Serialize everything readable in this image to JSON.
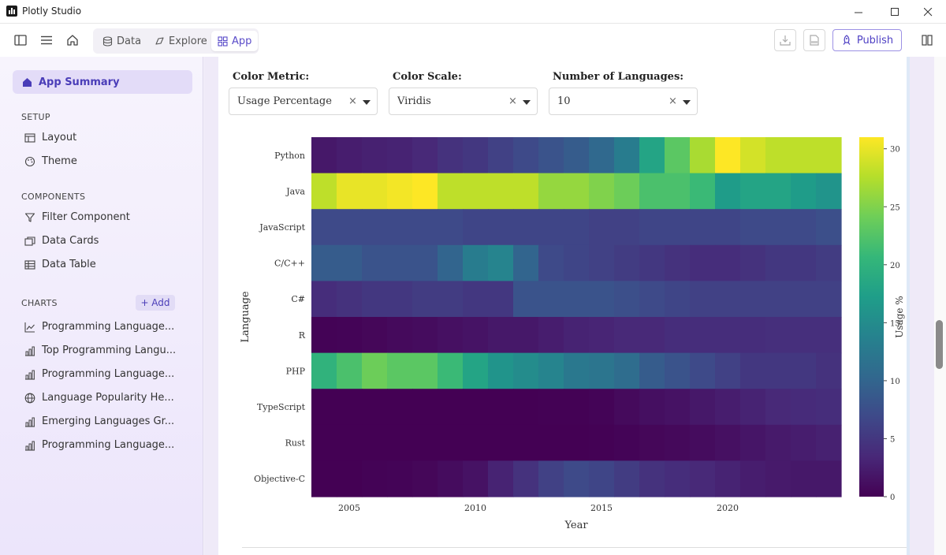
{
  "window": {
    "title": "Plotly Studio"
  },
  "toolbar": {
    "tabs": [
      {
        "label": "Data"
      },
      {
        "label": "Explore"
      },
      {
        "label": "App"
      }
    ],
    "active_tab": "App",
    "publish_label": "Publish",
    "accent": "#5a4cc9"
  },
  "sidebar": {
    "app_summary": "App Summary",
    "setup": {
      "heading": "SETUP",
      "items": [
        {
          "label": "Layout",
          "icon": "layout-icon"
        },
        {
          "label": "Theme",
          "icon": "palette-icon"
        }
      ]
    },
    "components": {
      "heading": "COMPONENTS",
      "items": [
        {
          "label": "Filter Component",
          "icon": "filter-icon"
        },
        {
          "label": "Data Cards",
          "icon": "cards-icon"
        },
        {
          "label": "Data Table",
          "icon": "table-icon"
        }
      ]
    },
    "charts": {
      "heading": "CHARTS",
      "add_label": "+ Add",
      "items": [
        {
          "label": "Programming Language...",
          "icon": "line-chart-icon"
        },
        {
          "label": "Top Programming Langu...",
          "icon": "bar-chart-icon"
        },
        {
          "label": "Programming Language...",
          "icon": "bar-chart-icon"
        },
        {
          "label": "Language Popularity He...",
          "icon": "globe-icon"
        },
        {
          "label": "Emerging Languages Gr...",
          "icon": "bar-chart-icon"
        },
        {
          "label": "Programming Language...",
          "icon": "bar-chart-icon"
        }
      ]
    }
  },
  "controls": {
    "color_metric": {
      "label": "Color Metric:",
      "value": "Usage Percentage"
    },
    "color_scale": {
      "label": "Color Scale:",
      "value": "Viridis"
    },
    "num_languages": {
      "label": "Number of Languages:",
      "value": "10"
    }
  },
  "chart_data": {
    "type": "heatmap",
    "xlabel": "Year",
    "ylabel": "Language",
    "colorbar_title": "Usage %",
    "colorscale": "Viridis",
    "zlim": [
      0,
      31
    ],
    "colorbar_ticks": [
      0,
      5,
      10,
      15,
      20,
      25,
      30
    ],
    "x": [
      2004,
      2005,
      2006,
      2007,
      2008,
      2009,
      2010,
      2011,
      2012,
      2013,
      2014,
      2015,
      2016,
      2017,
      2018,
      2019,
      2020,
      2021,
      2022,
      2023,
      2024
    ],
    "x_ticks": [
      2005,
      2010,
      2015,
      2020
    ],
    "y": [
      "Python",
      "Java",
      "JavaScript",
      "C/C++",
      "C#",
      "R",
      "PHP",
      "TypeScript",
      "Rust",
      "Objective-C"
    ],
    "z": [
      [
        2,
        2.5,
        2.8,
        3,
        3.5,
        4.5,
        5,
        6,
        7,
        8,
        9,
        10.5,
        13,
        18,
        23,
        27,
        31,
        29,
        28,
        28,
        28
      ],
      [
        28,
        30,
        30,
        30.5,
        31,
        28,
        28,
        28,
        28,
        26,
        26,
        25,
        24,
        22,
        22,
        21,
        17,
        18,
        18,
        17,
        16
      ],
      [
        7,
        7,
        7,
        7,
        7,
        7,
        6.5,
        6.5,
        6.5,
        6.5,
        6.5,
        6,
        6,
        6.5,
        6.5,
        6.5,
        6.5,
        7,
        7,
        7,
        7.5
      ],
      [
        9,
        9,
        8,
        8,
        8,
        10,
        13,
        14,
        10,
        7,
        6.5,
        6,
        5.5,
        5,
        4.5,
        4,
        4,
        4.5,
        5,
        5,
        5.5
      ],
      [
        4,
        4.5,
        5,
        5,
        5.5,
        5.5,
        5,
        5,
        8,
        8,
        8,
        8,
        7.5,
        7,
        6.5,
        6,
        6,
        6,
        6,
        6,
        6
      ],
      [
        0.2,
        0.3,
        0.5,
        0.8,
        1,
        1.3,
        1.6,
        2,
        2,
        2.5,
        3,
        3.2,
        3.5,
        3.5,
        4,
        4,
        4,
        4,
        4.2,
        4.2,
        4.2
      ],
      [
        20,
        22,
        24,
        23,
        23,
        21,
        18,
        16,
        15,
        14,
        12.5,
        12,
        11,
        9,
        8,
        7,
        6,
        5,
        5,
        5,
        4.5
      ],
      [
        0,
        0,
        0,
        0,
        0,
        0,
        0,
        0,
        0,
        0.1,
        0.1,
        0.3,
        0.8,
        1.2,
        1.5,
        2,
        2.5,
        3,
        3.5,
        3.8,
        4
      ],
      [
        0,
        0,
        0,
        0,
        0,
        0,
        0,
        0,
        0,
        0,
        0,
        0.1,
        0.3,
        0.5,
        0.7,
        1,
        1.3,
        1.8,
        2.2,
        2.5,
        2.8
      ],
      [
        0,
        0,
        0.2,
        0.3,
        0.5,
        1,
        1.5,
        3,
        4.5,
        6,
        7,
        6.5,
        5.5,
        4.5,
        4,
        3.5,
        3,
        2.5,
        2.2,
        2,
        2
      ]
    ]
  }
}
